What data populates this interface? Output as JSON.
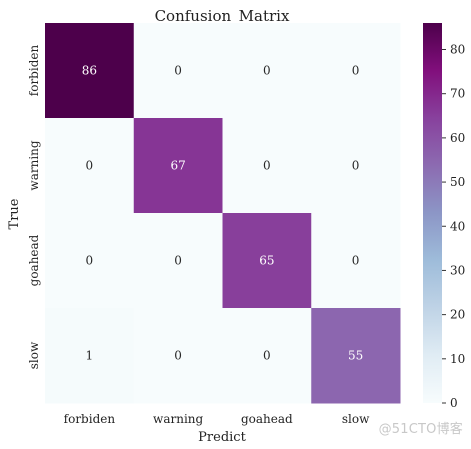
{
  "chart_data": {
    "type": "heatmap",
    "title": "Confusion_Matrix",
    "xlabel": "Predict",
    "ylabel": "True",
    "x_categories": [
      "forbiden",
      "warning",
      "goahead",
      "slow"
    ],
    "y_categories": [
      "forbiden",
      "warning",
      "goahead",
      "slow"
    ],
    "values": [
      [
        86,
        0,
        0,
        0
      ],
      [
        0,
        67,
        0,
        0
      ],
      [
        0,
        0,
        65,
        0
      ],
      [
        1,
        0,
        0,
        55
      ]
    ],
    "colorbar": {
      "min": 0,
      "max": 86,
      "ticks": [
        0,
        10,
        20,
        30,
        40,
        50,
        60,
        70,
        80
      ],
      "colormap": "BuPu",
      "colors": [
        "#f7fcfd",
        "#e0ecf4",
        "#bfd3e6",
        "#9ebcda",
        "#8c96c6",
        "#8c6bb1",
        "#88419d",
        "#810f7c",
        "#4d004b"
      ]
    },
    "grid": false
  },
  "watermark": "@51CTO博客"
}
